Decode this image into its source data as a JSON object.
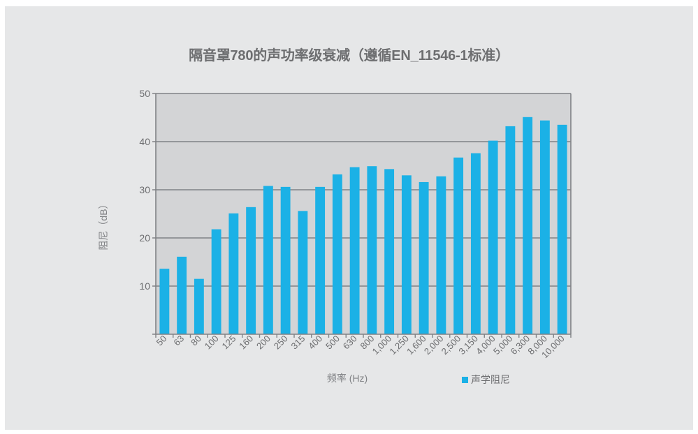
{
  "chart_data": {
    "type": "bar",
    "title": "隔音罩780的声功率级衰减（遵循EN_11546-1标准）",
    "xlabel": "频率 (Hz)",
    "ylabel": "阻尼（dB）",
    "ylim": [
      0,
      50
    ],
    "yticks": [
      "10",
      "20",
      "30",
      "40",
      "50"
    ],
    "grid": true,
    "legend_position": "bottom-right",
    "categories": [
      "50",
      "63",
      "80",
      "100",
      "125",
      "160",
      "200",
      "250",
      "315",
      "400",
      "500",
      "630",
      "800",
      "1,000",
      "1,250",
      "1,600",
      "2,000",
      "2,500",
      "3,150",
      "4,000",
      "5,000",
      "6,300",
      "8,000",
      "10,000"
    ],
    "series": [
      {
        "name": "声学阻尼",
        "color": "#1bb1e6",
        "values": [
          13.6,
          16.1,
          11.5,
          21.8,
          25.1,
          26.4,
          30.8,
          30.6,
          25.6,
          30.6,
          33.2,
          34.7,
          34.9,
          34.3,
          33.0,
          31.6,
          32.8,
          36.7,
          37.6,
          40.2,
          43.2,
          45.1,
          44.4,
          43.5
        ]
      }
    ],
    "colors": {
      "plot_bg": "#d3d4d6",
      "grid": "#808285",
      "axis": "#808285"
    }
  }
}
